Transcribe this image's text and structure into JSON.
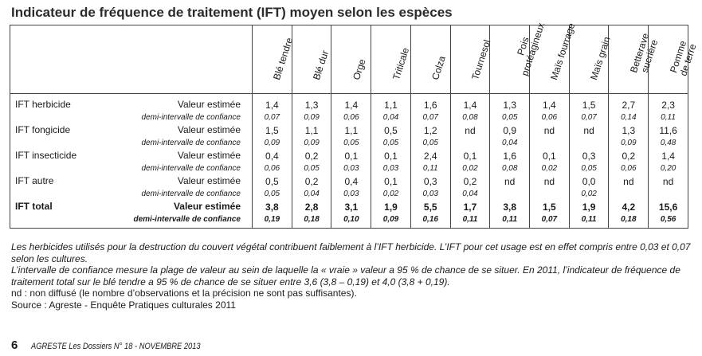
{
  "title": "Indicateur de fréquence de traitement (IFT) moyen selon les espèces",
  "columns": [
    {
      "label": "Blé tendre",
      "line2": ""
    },
    {
      "label": "Blé dur",
      "line2": ""
    },
    {
      "label": "Orge",
      "line2": ""
    },
    {
      "label": "Triticale",
      "line2": ""
    },
    {
      "label": "Colza",
      "line2": ""
    },
    {
      "label": "Tournesol",
      "line2": ""
    },
    {
      "label": "Pois",
      "line2": "protéagineux"
    },
    {
      "label": "Maïs fourrage",
      "line2": ""
    },
    {
      "label": "Maïs grain",
      "line2": ""
    },
    {
      "label": "Betterave",
      "line2": "sucrière"
    },
    {
      "label": "Pomme",
      "line2": "de terre"
    }
  ],
  "rows": [
    {
      "label": "IFT herbicide",
      "estimate_label": "Valeur estimée",
      "ci_label": "demi-intervalle de confiance",
      "estimates": [
        "1,4",
        "1,3",
        "1,4",
        "1,1",
        "1,6",
        "1,4",
        "1,3",
        "1,4",
        "1,5",
        "2,7",
        "2,3"
      ],
      "ci": [
        "0,07",
        "0,09",
        "0,06",
        "0,04",
        "0,07",
        "0,08",
        "0,05",
        "0,06",
        "0,07",
        "0,14",
        "0,11"
      ]
    },
    {
      "label": "IFT fongicide",
      "estimate_label": "Valeur estimée",
      "ci_label": "demi-intervalle de confiance",
      "estimates": [
        "1,5",
        "1,1",
        "1,1",
        "0,5",
        "1,2",
        "nd",
        "0,9",
        "nd",
        "nd",
        "1,3",
        "11,6"
      ],
      "ci": [
        "0,09",
        "0,09",
        "0,05",
        "0,05",
        "0,05",
        "",
        "0,04",
        "",
        "",
        "0,09",
        "0,48"
      ]
    },
    {
      "label": "IFT insecticide",
      "estimate_label": "Valeur estimée",
      "ci_label": "demi-intervalle de confiance",
      "estimates": [
        "0,4",
        "0,2",
        "0,1",
        "0,1",
        "2,4",
        "0,1",
        "1,6",
        "0,1",
        "0,3",
        "0,2",
        "1,4"
      ],
      "ci": [
        "0,06",
        "0,05",
        "0,03",
        "0,03",
        "0,11",
        "0,02",
        "0,08",
        "0,02",
        "0,05",
        "0,06",
        "0,20"
      ]
    },
    {
      "label": "IFT autre",
      "estimate_label": "Valeur estimée",
      "ci_label": "demi-intervalle de confiance",
      "estimates": [
        "0,5",
        "0,2",
        "0,4",
        "0,1",
        "0,3",
        "0,2",
        "nd",
        "nd",
        "0,0",
        "nd",
        "nd"
      ],
      "ci": [
        "0,05",
        "0,04",
        "0,03",
        "0,02",
        "0,03",
        "0,04",
        "",
        "",
        "0,02",
        "",
        ""
      ]
    },
    {
      "label": "IFT total",
      "estimate_label": "Valeur estimée",
      "ci_label": "demi-intervalle de confiance",
      "estimates": [
        "3,8",
        "2,8",
        "3,1",
        "1,9",
        "5,5",
        "1,7",
        "3,8",
        "1,5",
        "1,9",
        "4,2",
        "15,6"
      ],
      "ci": [
        "0,19",
        "0,18",
        "0,10",
        "0,09",
        "0,16",
        "0,11",
        "0,11",
        "0,07",
        "0,11",
        "0,18",
        "0,56"
      ]
    }
  ],
  "notes": [
    "Les herbicides utilisés pour la destruction du couvert végétal contribuent faiblement à l’IFT herbicide. L’IFT pour cet usage est en effet compris entre 0,03 et 0,07 selon les cultures.",
    "L’intervalle de confiance mesure la plage de valeur au sein de laquelle la « vraie » valeur a 95 % de chance de se situer. En 2011, l’indicateur de fréquence de traitement total sur le blé tendre a 95 % de chance de se situer entre 3,6 (3,8 – 0,19) et 4,0 (3,8 + 0,19).",
    "nd : non diffusé (le nombre d’observations et la précision ne sont pas suffisantes).",
    "Source : Agreste - Enquête Pratiques culturales 2011"
  ],
  "footer": {
    "page_number": "6",
    "publication": "AGRESTE Les Dossiers N° 18 - NOVEMBRE 2013"
  }
}
